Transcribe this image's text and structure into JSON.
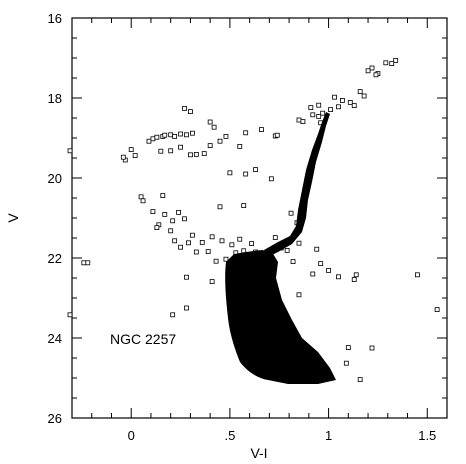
{
  "chart_data": {
    "type": "scatter",
    "title": "",
    "xlabel": "V-I",
    "ylabel": "V",
    "xlim": [
      -0.3,
      1.6
    ],
    "ylim": [
      26,
      16
    ],
    "y_inverted": true,
    "grid": false,
    "annotation": "NGC 2257",
    "x_tick_labels": [
      {
        "v": 0,
        "label": "0"
      },
      {
        "v": 0.5,
        "label": ".5"
      },
      {
        "v": 1,
        "label": "1"
      },
      {
        "v": 1.5,
        "label": "1.5"
      }
    ],
    "y_tick_labels": [
      {
        "v": 16,
        "label": "16"
      },
      {
        "v": 18,
        "label": "18"
      },
      {
        "v": 20,
        "label": "20"
      },
      {
        "v": 22,
        "label": "22"
      },
      {
        "v": 24,
        "label": "24"
      },
      {
        "v": 26,
        "label": "26"
      }
    ],
    "x_minor_step": 0.1,
    "y_minor_step": 0.5,
    "series": [
      {
        "marker": "open-square",
        "points": [
          [
            1.34,
            17.06
          ],
          [
            1.32,
            17.14
          ],
          [
            1.29,
            17.12
          ],
          [
            1.22,
            17.25
          ],
          [
            1.2,
            17.32
          ],
          [
            1.25,
            17.39
          ],
          [
            1.24,
            17.42
          ],
          [
            1.16,
            17.84
          ],
          [
            1.18,
            17.95
          ],
          [
            1.11,
            18.11
          ],
          [
            1.13,
            18.19
          ],
          [
            1.07,
            18.06
          ],
          [
            1.03,
            17.98
          ],
          [
            1.05,
            18.22
          ],
          [
            1.01,
            18.29
          ],
          [
            0.97,
            18.38
          ],
          [
            0.95,
            18.18
          ],
          [
            0.96,
            18.62
          ],
          [
            0.73,
            18.95
          ],
          [
            0.74,
            18.93
          ],
          [
            0.66,
            18.79
          ],
          [
            0.58,
            18.87
          ],
          [
            0.55,
            19.21
          ],
          [
            0.48,
            18.96
          ],
          [
            0.45,
            19.08
          ],
          [
            0.4,
            19.19
          ],
          [
            0.37,
            19.39
          ],
          [
            0.33,
            19.41
          ],
          [
            0.3,
            19.42
          ],
          [
            0.25,
            19.23
          ],
          [
            0.2,
            19.32
          ],
          [
            0.15,
            19.33
          ],
          [
            0.5,
            19.87
          ],
          [
            0.58,
            19.9
          ],
          [
            0.63,
            19.79
          ],
          [
            0.71,
            20.02
          ],
          [
            0.27,
            18.26
          ],
          [
            0.3,
            18.34
          ],
          [
            0.4,
            18.6
          ],
          [
            0.42,
            18.73
          ],
          [
            0.85,
            18.55
          ],
          [
            0.87,
            18.59
          ],
          [
            0.91,
            18.24
          ],
          [
            0.92,
            18.42
          ],
          [
            0.95,
            18.46
          ],
          [
            0.0,
            19.29
          ],
          [
            0.02,
            19.44
          ],
          [
            0.09,
            19.08
          ],
          [
            0.11,
            19.02
          ],
          [
            0.13,
            18.98
          ],
          [
            0.16,
            18.96
          ],
          [
            0.17,
            18.93
          ],
          [
            0.2,
            18.92
          ],
          [
            0.22,
            18.96
          ],
          [
            0.25,
            18.9
          ],
          [
            0.28,
            18.92
          ],
          [
            0.31,
            18.88
          ],
          [
            -0.03,
            19.55
          ],
          [
            -0.04,
            19.48
          ],
          [
            -0.31,
            19.32
          ],
          [
            -0.32,
            23.42
          ],
          [
            0.05,
            20.47
          ],
          [
            0.06,
            20.57
          ],
          [
            0.11,
            20.84
          ],
          [
            0.16,
            20.44
          ],
          [
            0.17,
            20.91
          ],
          [
            0.14,
            21.17
          ],
          [
            0.13,
            21.24
          ],
          [
            0.21,
            21.07
          ],
          [
            0.24,
            20.86
          ],
          [
            0.27,
            21.02
          ],
          [
            0.2,
            21.32
          ],
          [
            0.22,
            21.57
          ],
          [
            0.25,
            21.73
          ],
          [
            0.29,
            21.62
          ],
          [
            0.31,
            21.43
          ],
          [
            0.33,
            21.85
          ],
          [
            0.36,
            21.61
          ],
          [
            0.39,
            21.84
          ],
          [
            0.41,
            21.47
          ],
          [
            0.43,
            22.08
          ],
          [
            0.46,
            21.57
          ],
          [
            0.48,
            22.03
          ],
          [
            0.51,
            21.67
          ],
          [
            0.53,
            21.87
          ],
          [
            0.55,
            21.53
          ],
          [
            0.57,
            21.82
          ],
          [
            0.59,
            22.07
          ],
          [
            0.61,
            21.64
          ],
          [
            0.63,
            21.85
          ],
          [
            0.28,
            22.48
          ],
          [
            0.41,
            22.59
          ],
          [
            0.53,
            22.6
          ],
          [
            0.28,
            23.25
          ],
          [
            0.21,
            23.42
          ],
          [
            -0.24,
            22.12
          ],
          [
            -0.22,
            22.12
          ],
          [
            0.45,
            20.72
          ],
          [
            0.57,
            20.69
          ],
          [
            0.81,
            20.88
          ],
          [
            0.84,
            21.12
          ],
          [
            0.73,
            21.49
          ],
          [
            0.76,
            21.75
          ],
          [
            0.79,
            21.81
          ],
          [
            0.82,
            22.09
          ],
          [
            0.85,
            21.63
          ],
          [
            0.85,
            22.92
          ],
          [
            0.92,
            22.4
          ],
          [
            0.94,
            21.78
          ],
          [
            0.96,
            22.14
          ],
          [
            1.0,
            22.31
          ],
          [
            1.05,
            22.47
          ],
          [
            1.13,
            22.54
          ],
          [
            1.14,
            22.42
          ],
          [
            1.22,
            24.25
          ],
          [
            1.45,
            22.42
          ],
          [
            1.55,
            23.29
          ],
          [
            1.16,
            25.04
          ],
          [
            1.09,
            24.63
          ],
          [
            1.1,
            24.24
          ]
        ]
      }
    ]
  }
}
